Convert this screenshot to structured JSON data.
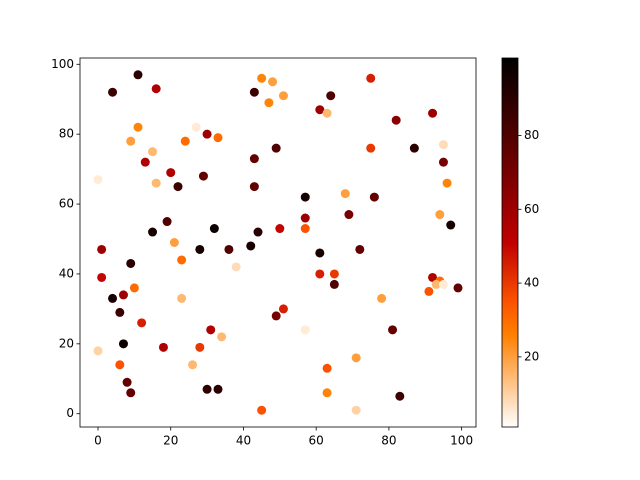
{
  "chart_data": {
    "type": "scatter",
    "colormap": "gist_heat_r",
    "x": [
      11,
      4,
      16,
      45,
      48,
      43,
      64,
      51,
      47,
      75,
      61,
      63,
      92,
      82,
      11,
      27,
      9,
      24,
      30,
      33,
      15,
      13,
      75,
      87,
      95,
      49,
      95,
      43,
      0,
      16,
      20,
      22,
      29,
      96,
      43,
      68,
      76,
      57,
      94,
      69,
      57,
      19,
      15,
      32,
      44,
      50,
      57,
      97,
      1,
      9,
      21,
      28,
      36,
      42,
      61,
      72,
      23,
      38,
      1,
      61,
      65,
      65,
      92,
      94,
      93,
      95,
      91,
      99,
      4,
      7,
      10,
      23,
      78,
      6,
      12,
      51,
      49,
      31,
      34,
      57,
      81,
      0,
      7,
      18,
      28,
      6,
      26,
      71,
      63,
      8,
      9,
      30,
      33,
      63,
      83,
      45,
      71
    ],
    "y": [
      97,
      92,
      93,
      96,
      95,
      92,
      91,
      91,
      89,
      96,
      87,
      86,
      86,
      84,
      82,
      82,
      78,
      78,
      80,
      79,
      75,
      72,
      76,
      76,
      77,
      76,
      72,
      73,
      67,
      66,
      69,
      65,
      68,
      66,
      65,
      63,
      62,
      62,
      57,
      57,
      56,
      55,
      52,
      53,
      52,
      53,
      53,
      54,
      47,
      43,
      49,
      47,
      47,
      48,
      46,
      47,
      44,
      42,
      39,
      40,
      40,
      37,
      39,
      38,
      37,
      37,
      35,
      36,
      33,
      34,
      36,
      33,
      33,
      29,
      26,
      30,
      28,
      24,
      22,
      24,
      24,
      18,
      20,
      19,
      19,
      14,
      14,
      16,
      13,
      9,
      6,
      7,
      7,
      6,
      5,
      1,
      1
    ],
    "c": [
      90,
      85,
      55,
      25,
      20,
      85,
      80,
      20,
      25,
      45,
      60,
      15,
      60,
      65,
      25,
      5,
      20,
      30,
      60,
      30,
      15,
      55,
      40,
      90,
      8,
      80,
      70,
      75,
      5,
      15,
      55,
      85,
      75,
      25,
      75,
      20,
      75,
      95,
      20,
      70,
      60,
      80,
      95,
      98,
      90,
      50,
      35,
      95,
      60,
      90,
      20,
      95,
      80,
      95,
      95,
      75,
      30,
      8,
      50,
      45,
      40,
      80,
      55,
      30,
      15,
      5,
      35,
      75,
      95,
      60,
      30,
      15,
      20,
      85,
      45,
      45,
      70,
      55,
      15,
      5,
      75,
      10,
      98,
      55,
      40,
      35,
      15,
      20,
      35,
      75,
      75,
      90,
      90,
      25,
      85,
      35,
      10
    ],
    "xlim": [
      -4.95,
      103.95
    ],
    "ylim": [
      -3.8,
      101.8
    ],
    "xticks": [
      0,
      20,
      40,
      60,
      80,
      100
    ],
    "yticks": [
      0,
      20,
      40,
      60,
      80,
      100
    ],
    "clim": [
      1,
      101
    ],
    "cticks": [
      20,
      40,
      60,
      80
    ]
  }
}
